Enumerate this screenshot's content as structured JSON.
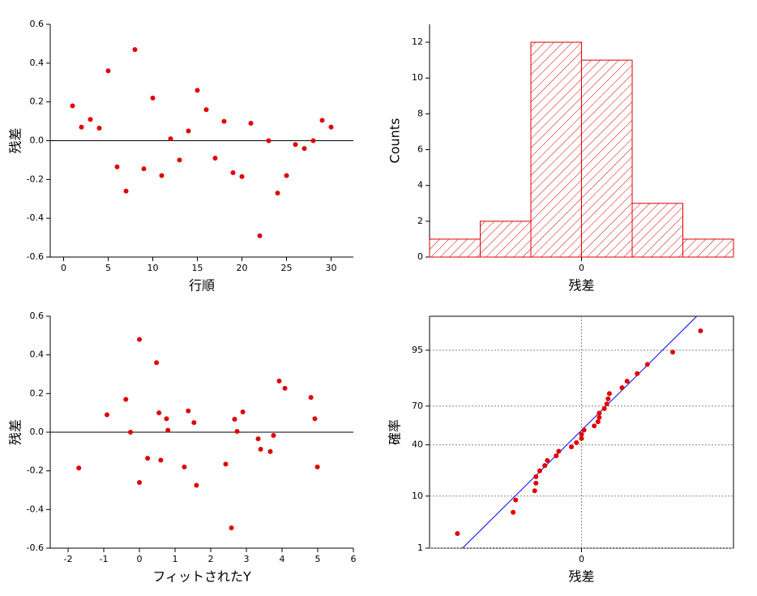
{
  "chart_data": [
    {
      "type": "scatter",
      "x_label": "行順",
      "y_label": "残差",
      "color": "#e00000",
      "hline": 0,
      "x": [
        1,
        2,
        3,
        4,
        5,
        6,
        7,
        8,
        9,
        10,
        11,
        12,
        13,
        14,
        15,
        16,
        17,
        18,
        19,
        20,
        21,
        22,
        23,
        24,
        25,
        26,
        27,
        28,
        29,
        30
      ],
      "values": [
        0.18,
        0.07,
        0.11,
        0.065,
        0.36,
        -0.135,
        -0.26,
        0.47,
        -0.145,
        0.22,
        -0.18,
        0.01,
        -0.1,
        0.05,
        0.26,
        0.16,
        -0.09,
        0.1,
        -0.165,
        -0.185,
        0.09,
        -0.49,
        0,
        -0.27,
        -0.18,
        -0.02,
        -0.04,
        0,
        0.105,
        0.07
      ],
      "xlim": [
        -1.5,
        32.5
      ],
      "xticks": [
        0,
        5,
        10,
        15,
        20,
        25,
        30
      ],
      "ylim": [
        -0.6,
        0.6
      ],
      "yticks": [
        -0.6,
        -0.4,
        -0.2,
        {
          "value": 0,
          "label": "0.0"
        },
        0.2,
        0.4,
        0.6
      ]
    },
    {
      "type": "histogram",
      "x_label": "残差",
      "y_label": "Counts",
      "color": "#e00000",
      "bins": [
        -0.6,
        -0.4,
        -0.2,
        0,
        0.2,
        0.4,
        0.6
      ],
      "counts": [
        1,
        2,
        12,
        11,
        3,
        1
      ],
      "xlim": [
        -0.6,
        0.6
      ],
      "xticks": [
        0
      ],
      "ylim": [
        0,
        13
      ],
      "yticks": [
        0,
        2,
        4,
        6,
        8,
        10,
        12
      ]
    },
    {
      "type": "scatter",
      "x_label": "フィットされたY",
      "y_label": "残差",
      "color": "#e00000",
      "hline": 0,
      "x": [
        -1.7,
        -0.91,
        -0.38,
        -0.25,
        0,
        0,
        0.23,
        0.48,
        0.55,
        0.6,
        0.76,
        0.8,
        1.26,
        1.37,
        1.53,
        1.6,
        2.42,
        2.58,
        2.67,
        2.74,
        2.9,
        3.33,
        3.4,
        3.67,
        3.76,
        3.92,
        4.08,
        4.81,
        4.92,
        4.99
      ],
      "values": [
        -0.185,
        0.09,
        0.17,
        0,
        0.48,
        -0.26,
        -0.135,
        0.36,
        0.1,
        -0.145,
        0.07,
        0.01,
        -0.18,
        0.11,
        0.05,
        -0.275,
        -0.165,
        -0.495,
        0.067,
        0.004,
        0.105,
        -0.034,
        -0.088,
        -0.1,
        -0.017,
        0.265,
        0.227,
        0.18,
        0.07,
        -0.18
      ],
      "xlim": [
        -2.5,
        6
      ],
      "xticks": [
        -2,
        -1,
        0,
        1,
        2,
        3,
        4,
        5,
        6
      ],
      "ylim": [
        -0.6,
        0.6
      ],
      "yticks": [
        -0.6,
        -0.4,
        -0.2,
        {
          "value": 0,
          "label": "0.0"
        },
        0.2,
        0.4,
        0.6
      ]
    },
    {
      "type": "scatter",
      "x_label": "残差",
      "y_label": "確率",
      "color": "#e00000",
      "yscale": "probability",
      "grid": true,
      "x": [
        -0.49,
        -0.27,
        -0.26,
        -0.185,
        -0.18,
        -0.18,
        -0.165,
        -0.145,
        -0.135,
        -0.1,
        -0.09,
        -0.04,
        -0.02,
        0,
        0,
        0.01,
        0.05,
        0.065,
        0.07,
        0.07,
        0.09,
        0.1,
        0.105,
        0.11,
        0.16,
        0.18,
        0.22,
        0.26,
        0.36,
        0.47
      ],
      "values": [
        2.1,
        5.4,
        8.7,
        12,
        15.3,
        18.6,
        21.9,
        25.2,
        28.5,
        31.8,
        35.1,
        38.4,
        41.7,
        45,
        48.3,
        51.7,
        55,
        58.3,
        61.6,
        64.9,
        68.2,
        71.5,
        74.8,
        78.1,
        81.4,
        84.7,
        88,
        91.3,
        94.6,
        97.9
      ],
      "fit": {
        "color": "#0000ff",
        "x": [
          -0.47,
          0.455
        ],
        "values": [
          1,
          99
        ]
      },
      "xlim": [
        -0.6,
        0.6
      ],
      "xticks": [
        0
      ],
      "ylim": [
        1,
        99
      ],
      "yticks": [
        1,
        10,
        40,
        70,
        95
      ]
    }
  ]
}
